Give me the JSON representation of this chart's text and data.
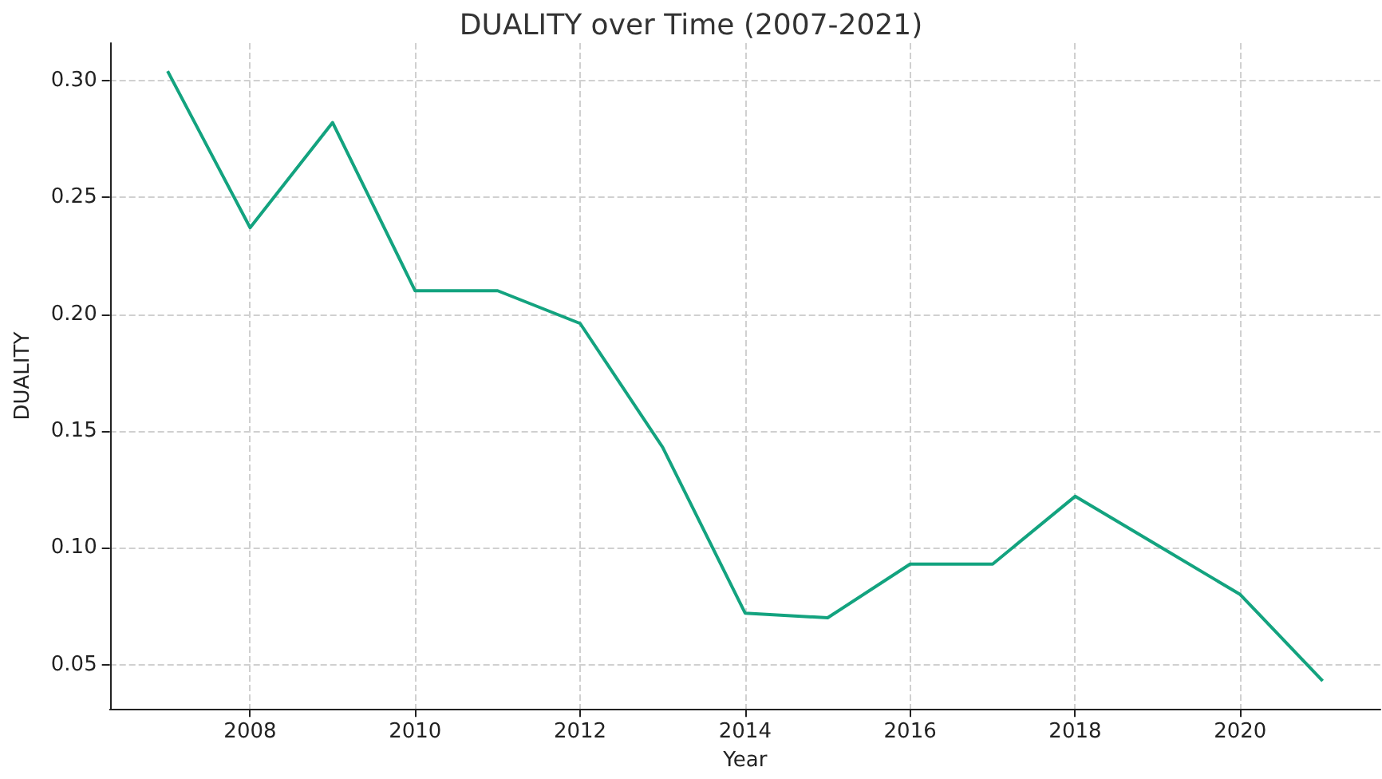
{
  "chart_data": {
    "type": "line",
    "title": "DUALITY over Time (2007-2021)",
    "xlabel": "Year",
    "ylabel": "DUALITY",
    "x": [
      2007,
      2008,
      2009,
      2010,
      2011,
      2012,
      2013,
      2014,
      2015,
      2016,
      2017,
      2018,
      2019,
      2020,
      2021
    ],
    "series": [
      {
        "color": "#13a37f",
        "values": [
          0.304,
          0.237,
          0.282,
          0.21,
          0.21,
          0.196,
          0.143,
          0.072,
          0.07,
          0.093,
          0.093,
          0.122,
          0.101,
          0.08,
          0.043
        ]
      }
    ],
    "xlim": [
      2006.3,
      2021.7
    ],
    "xticks": [
      2008,
      2010,
      2012,
      2014,
      2016,
      2018,
      2020
    ],
    "ylim": [
      0.031,
      0.316
    ],
    "yticks": [
      {
        "value": 0.05,
        "label": "0.05"
      },
      {
        "value": 0.1,
        "label": "0.10"
      },
      {
        "value": 0.15,
        "label": "0.15"
      },
      {
        "value": 0.2,
        "label": "0.20"
      },
      {
        "value": 0.25,
        "label": "0.25"
      },
      {
        "value": 0.3,
        "label": "0.30"
      }
    ],
    "grid": true,
    "marker": "none",
    "line_style": "solid"
  }
}
